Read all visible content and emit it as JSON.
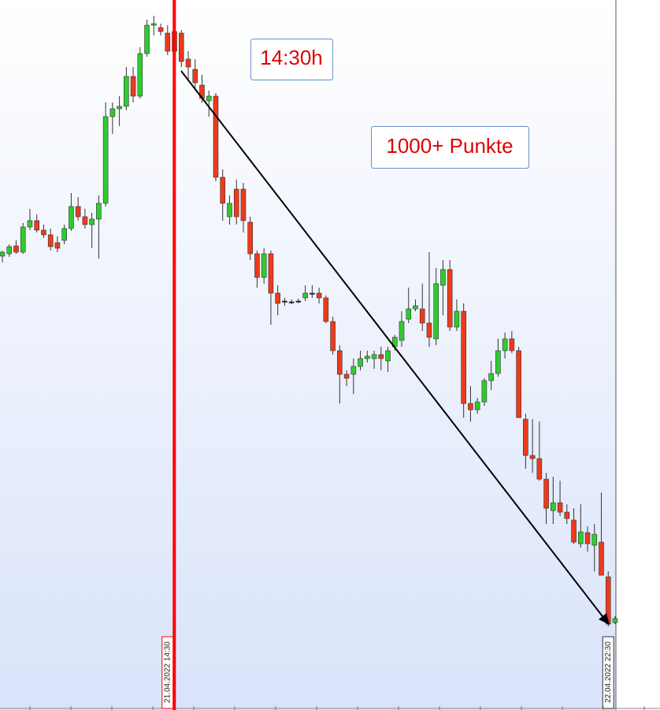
{
  "chart_data": {
    "type": "candlestick",
    "categories": [
      null,
      null,
      null,
      null,
      null,
      null,
      null,
      null,
      null,
      null,
      null,
      null,
      null,
      null,
      null,
      null,
      null,
      null,
      null,
      null,
      null,
      null,
      null,
      null,
      "21.04.2022 14:30",
      null,
      null,
      null,
      null,
      null,
      null,
      null,
      null,
      null,
      null,
      null,
      null,
      null,
      null,
      null,
      null,
      null,
      null,
      null,
      null,
      null,
      null,
      null,
      null,
      null,
      null,
      null,
      null,
      null,
      null,
      null,
      null,
      null,
      null,
      null,
      null,
      null,
      null,
      null,
      null,
      null,
      null,
      null,
      null,
      null,
      null,
      null,
      null,
      null,
      null,
      null,
      null,
      null,
      null,
      null,
      null,
      null,
      null,
      null,
      null,
      null,
      null,
      null,
      "22.04.2022 22:30",
      null
    ],
    "open": [
      14150,
      14156,
      14176,
      14160,
      14224,
      14240,
      14216,
      14204,
      14184,
      14190,
      14220,
      14276,
      14250,
      14230,
      14244,
      14284,
      14504,
      14524,
      14530,
      14606,
      14556,
      14664,
      14736,
      14730,
      14716,
      14720,
      14716,
      14650,
      14624,
      14584,
      14544,
      14556,
      14350,
      14250,
      14320,
      14320,
      14236,
      14156,
      14096,
      14156,
      14056,
      14036,
      14034,
      14036,
      14044,
      14056,
      14056,
      14044,
      13984,
      13910,
      13850,
      13850,
      13870,
      13890,
      13890,
      13900,
      13884,
      13920,
      13936,
      13990,
      14016,
      14016,
      13980,
      13940,
      14076,
      14116,
      13970,
      14010,
      13776,
      13760,
      13780,
      13834,
      13852,
      13910,
      13940,
      13910,
      13736,
      13644,
      13636,
      13584,
      13504,
      13524,
      13500,
      13480,
      13420,
      13448,
      13416,
      13424,
      13336,
      13220
    ],
    "high": [
      14164,
      14180,
      14190,
      14234,
      14270,
      14256,
      14230,
      14220,
      14200,
      14230,
      14310,
      14300,
      14270,
      14260,
      14304,
      14540,
      14540,
      14556,
      14630,
      14630,
      14680,
      14750,
      14760,
      14740,
      14736,
      14744,
      14724,
      14670,
      14650,
      14610,
      14570,
      14564,
      14370,
      14304,
      14344,
      14336,
      14250,
      14164,
      14170,
      14164,
      14076,
      14044,
      14040,
      14042,
      14076,
      14076,
      14070,
      14050,
      13996,
      13924,
      13860,
      13890,
      13910,
      13910,
      13910,
      13920,
      13920,
      13950,
      14010,
      14070,
      14040,
      14080,
      14160,
      14120,
      14140,
      14140,
      14040,
      14030,
      13820,
      13790,
      13840,
      13884,
      13940,
      13956,
      13960,
      13920,
      13750,
      13736,
      13730,
      13600,
      13590,
      13580,
      13520,
      13510,
      13520,
      13464,
      13470,
      13550,
      13350,
      13236
    ],
    "low": [
      14134,
      14148,
      14156,
      14156,
      14216,
      14210,
      14196,
      14164,
      14160,
      14180,
      14214,
      14240,
      14220,
      14170,
      14144,
      14276,
      14460,
      14480,
      14520,
      14540,
      14550,
      14656,
      14710,
      14710,
      14660,
      14644,
      14630,
      14600,
      14570,
      14540,
      14504,
      14340,
      14240,
      14230,
      14230,
      14210,
      14140,
      14070,
      14080,
      13976,
      14000,
      14024,
      14028,
      14030,
      14036,
      14044,
      14030,
      13980,
      13900,
      13776,
      13820,
      13800,
      13860,
      13880,
      13864,
      13860,
      13856,
      13910,
      13920,
      13980,
      14010,
      13960,
      13920,
      13924,
      14000,
      13960,
      13960,
      13740,
      13730,
      13750,
      13770,
      13810,
      13844,
      13890,
      13904,
      13740,
      13610,
      13600,
      13580,
      13470,
      13470,
      13490,
      13470,
      13420,
      13410,
      13400,
      13350,
      13340,
      13210,
      13216
    ],
    "close": [
      14160,
      14174,
      14160,
      14224,
      14240,
      14216,
      14204,
      14174,
      14170,
      14220,
      14276,
      14250,
      14230,
      14244,
      14284,
      14504,
      14524,
      14530,
      14606,
      14556,
      14664,
      14736,
      14740,
      14720,
      14670,
      14670,
      14644,
      14630,
      14590,
      14550,
      14556,
      14350,
      14284,
      14284,
      14250,
      14240,
      14156,
      14096,
      14156,
      14056,
      14030,
      14036,
      14034,
      14036,
      14056,
      14056,
      14044,
      13984,
      13910,
      13850,
      13840,
      13870,
      13890,
      13896,
      13900,
      13890,
      13910,
      13944,
      13984,
      14016,
      14024,
      13980,
      13944,
      14080,
      14116,
      13970,
      14010,
      13776,
      13760,
      13780,
      13834,
      13852,
      13910,
      13940,
      13910,
      13740,
      13644,
      13636,
      13584,
      13510,
      13524,
      13500,
      13484,
      13424,
      13450,
      13420,
      13444,
      13340,
      13216,
      13230
    ],
    "up_color": "#2ecc2e",
    "down_color": "#ee3a1a",
    "ylim": [
      13000,
      14800
    ],
    "marker_line_color": "#ff0000",
    "annotations": [
      {
        "text": "14:30h"
      },
      {
        "text": "1000+ Punkte"
      }
    ]
  }
}
